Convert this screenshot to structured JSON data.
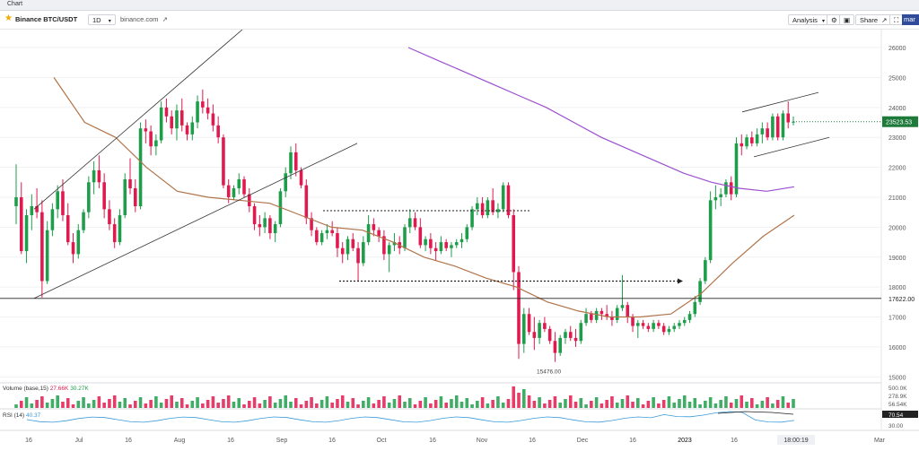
{
  "window": {
    "title": "Chart"
  },
  "toolbar": {
    "symbol": "Binance BTC/USDT",
    "interval": "1D",
    "site": "binance.com",
    "analysis": "Analysis",
    "share": "Share",
    "right_tab": "mar"
  },
  "icons": [
    "star-icon",
    "dropdown-icon",
    "external-link-icon",
    "settings-icon",
    "fullscreen-icon",
    "expand-icon"
  ],
  "colors": {
    "up": "#1e9e4a",
    "down": "#e01a4f",
    "ma_long": "#9c4fcf",
    "ma_short": "#b0744a",
    "rsi": "#3a9ad9",
    "price_tag": "#1e7a3a"
  },
  "chart_data": [
    {
      "type": "candlestick",
      "title": "",
      "ylim": [
        14800,
        26600
      ],
      "y_ticks": [
        "26000",
        "25000",
        "24000",
        "23000",
        "22000",
        "21000",
        "20000",
        "19000",
        "18000",
        "17000",
        "16000",
        "15000"
      ],
      "x_ticks": [
        "16",
        "Jul",
        "16",
        "Aug",
        "16",
        "Sep",
        "16",
        "Oct",
        "16",
        "Nov",
        "16",
        "Dec",
        "16",
        "2023",
        "16",
        "Mar"
      ],
      "horizontal_level": "17622.00",
      "current_price": "23523.53",
      "low_label": "15476.00",
      "candles_ohlc": [
        [
          20700,
          22100,
          20100,
          21000
        ],
        [
          21000,
          21500,
          19100,
          19200
        ],
        [
          19200,
          20600,
          18800,
          20400
        ],
        [
          20400,
          21100,
          19900,
          20700
        ],
        [
          20700,
          21300,
          20300,
          20500
        ],
        [
          20500,
          20900,
          17650,
          18200
        ],
        [
          18200,
          20200,
          18100,
          19900
        ],
        [
          19900,
          20800,
          19700,
          20600
        ],
        [
          20600,
          21400,
          20300,
          21200
        ],
        [
          21200,
          21600,
          20200,
          20400
        ],
        [
          20400,
          20800,
          19400,
          19500
        ],
        [
          19500,
          19800,
          18800,
          19100
        ],
        [
          19100,
          20100,
          18950,
          19900
        ],
        [
          19900,
          20600,
          19800,
          20500
        ],
        [
          20500,
          21700,
          20300,
          21500
        ],
        [
          21500,
          22200,
          21100,
          21900
        ],
        [
          21900,
          22400,
          21300,
          21500
        ],
        [
          21500,
          21800,
          20300,
          20600
        ],
        [
          20600,
          20900,
          19900,
          20100
        ],
        [
          20100,
          20300,
          19300,
          19500
        ],
        [
          19500,
          20600,
          19400,
          20400
        ],
        [
          20400,
          21800,
          20300,
          21600
        ],
        [
          21600,
          22300,
          21100,
          21300
        ],
        [
          21300,
          21600,
          20500,
          20700
        ],
        [
          20700,
          23500,
          20600,
          23300
        ],
        [
          23300,
          23600,
          22800,
          23200
        ],
        [
          23200,
          23400,
          22400,
          22700
        ],
        [
          22700,
          23100,
          22400,
          22900
        ],
        [
          22900,
          24200,
          22800,
          24000
        ],
        [
          24000,
          24300,
          23500,
          23700
        ],
        [
          23700,
          23900,
          23100,
          23300
        ],
        [
          23300,
          24100,
          22900,
          23900
        ],
        [
          23900,
          24300,
          23200,
          23400
        ],
        [
          23400,
          23500,
          22900,
          23100
        ],
        [
          23100,
          23700,
          22900,
          23500
        ],
        [
          23500,
          24400,
          23300,
          24200
        ],
        [
          24200,
          24600,
          23800,
          24000
        ],
        [
          24000,
          24300,
          23600,
          23800
        ],
        [
          23800,
          24100,
          23200,
          23400
        ],
        [
          23400,
          23700,
          22800,
          23000
        ],
        [
          23000,
          23100,
          21300,
          21400
        ],
        [
          21400,
          21600,
          20800,
          21000
        ],
        [
          21000,
          21400,
          20900,
          21300
        ],
        [
          21300,
          21800,
          21100,
          21600
        ],
        [
          21600,
          21700,
          21000,
          21100
        ],
        [
          21100,
          21300,
          20500,
          20700
        ],
        [
          20700,
          20800,
          19900,
          20100
        ],
        [
          20100,
          20400,
          19700,
          20000
        ],
        [
          20000,
          20500,
          19800,
          20300
        ],
        [
          20300,
          20400,
          19600,
          19800
        ],
        [
          19800,
          20200,
          19500,
          20100
        ],
        [
          20100,
          21300,
          20000,
          21200
        ],
        [
          21200,
          22000,
          21000,
          21800
        ],
        [
          21800,
          22700,
          21600,
          22500
        ],
        [
          22500,
          22800,
          21700,
          21900
        ],
        [
          21900,
          22000,
          21300,
          21400
        ],
        [
          21400,
          21600,
          20100,
          20300
        ],
        [
          20300,
          20500,
          19700,
          19900
        ],
        [
          19900,
          20000,
          19400,
          19500
        ],
        [
          19500,
          19900,
          19400,
          19800
        ],
        [
          19800,
          20100,
          19600,
          19900
        ],
        [
          19900,
          20200,
          19700,
          19800
        ],
        [
          19800,
          20000,
          19000,
          19300
        ],
        [
          19300,
          19500,
          18800,
          19100
        ],
        [
          19100,
          19700,
          18900,
          19600
        ],
        [
          19600,
          19800,
          19200,
          19300
        ],
        [
          19300,
          19500,
          18200,
          18800
        ],
        [
          18800,
          19700,
          18700,
          19500
        ],
        [
          19500,
          20400,
          19400,
          20100
        ],
        [
          20100,
          20300,
          19700,
          19900
        ],
        [
          19900,
          20000,
          19500,
          19700
        ],
        [
          19700,
          19900,
          18900,
          19100
        ],
        [
          19100,
          19500,
          18500,
          19400
        ],
        [
          19400,
          19800,
          19200,
          19500
        ],
        [
          19500,
          19700,
          19100,
          19300
        ],
        [
          19300,
          20100,
          19200,
          20000
        ],
        [
          20000,
          20600,
          19800,
          20300
        ],
        [
          20300,
          20500,
          19900,
          20000
        ],
        [
          20000,
          20300,
          19300,
          19400
        ],
        [
          19400,
          19700,
          19200,
          19600
        ],
        [
          19600,
          19800,
          19100,
          19300
        ],
        [
          19300,
          19500,
          18900,
          19200
        ],
        [
          19200,
          19700,
          19100,
          19500
        ],
        [
          19500,
          19600,
          19200,
          19300
        ],
        [
          19300,
          19500,
          19000,
          19400
        ],
        [
          19400,
          19600,
          19300,
          19500
        ],
        [
          19500,
          19800,
          19300,
          19600
        ],
        [
          19600,
          20100,
          19500,
          20000
        ],
        [
          20000,
          20700,
          19900,
          20600
        ],
        [
          20600,
          21000,
          20400,
          20800
        ],
        [
          20800,
          21000,
          20300,
          20400
        ],
        [
          20400,
          21000,
          20300,
          20900
        ],
        [
          20900,
          21300,
          20400,
          20500
        ],
        [
          20500,
          20800,
          20300,
          20600
        ],
        [
          20600,
          21500,
          20500,
          21400
        ],
        [
          21400,
          21500,
          20300,
          20400
        ],
        [
          20400,
          20600,
          17900,
          18500
        ],
        [
          18500,
          18700,
          15600,
          16100
        ],
        [
          16100,
          17300,
          15800,
          17100
        ],
        [
          17100,
          17300,
          16400,
          16500
        ],
        [
          16500,
          17000,
          15900,
          16300
        ],
        [
          16300,
          16900,
          16100,
          16800
        ],
        [
          16800,
          17000,
          16500,
          16600
        ],
        [
          16600,
          16700,
          16100,
          16200
        ],
        [
          16200,
          16500,
          15500,
          15800
        ],
        [
          15800,
          16400,
          15700,
          16300
        ],
        [
          16300,
          16600,
          16100,
          16500
        ],
        [
          16500,
          16700,
          16200,
          16300
        ],
        [
          16300,
          16600,
          16000,
          16200
        ],
        [
          16200,
          16900,
          16100,
          16800
        ],
        [
          16800,
          17300,
          16700,
          17100
        ],
        [
          17100,
          17200,
          16800,
          16900
        ],
        [
          16900,
          17300,
          16800,
          17200
        ],
        [
          17200,
          17300,
          16900,
          17100
        ],
        [
          17100,
          17400,
          16900,
          17000
        ],
        [
          17000,
          17200,
          16700,
          16900
        ],
        [
          16900,
          17400,
          16800,
          17300
        ],
        [
          17300,
          18400,
          17200,
          17400
        ],
        [
          17400,
          17500,
          16800,
          17000
        ],
        [
          17000,
          17100,
          16500,
          16700
        ],
        [
          16700,
          16900,
          16300,
          16800
        ],
        [
          16800,
          16900,
          16600,
          16700
        ],
        [
          16700,
          16800,
          16500,
          16600
        ],
        [
          16600,
          16900,
          16500,
          16800
        ],
        [
          16800,
          16900,
          16600,
          16700
        ],
        [
          16700,
          16800,
          16400,
          16500
        ],
        [
          16500,
          16700,
          16400,
          16600
        ],
        [
          16600,
          16800,
          16500,
          16700
        ],
        [
          16700,
          16900,
          16600,
          16800
        ],
        [
          16800,
          17000,
          16700,
          16900
        ],
        [
          16900,
          17200,
          16800,
          17100
        ],
        [
          17100,
          17700,
          17000,
          17500
        ],
        [
          17500,
          18300,
          17400,
          18200
        ],
        [
          18200,
          19000,
          18100,
          18900
        ],
        [
          18900,
          21200,
          18800,
          20900
        ],
        [
          20900,
          21400,
          20600,
          21000
        ],
        [
          21000,
          21300,
          20700,
          21100
        ],
        [
          21100,
          21600,
          21000,
          21500
        ],
        [
          21500,
          21700,
          20900,
          21100
        ],
        [
          21100,
          23000,
          21000,
          22800
        ],
        [
          22800,
          23100,
          22400,
          22700
        ],
        [
          22700,
          23100,
          22600,
          23000
        ],
        [
          23000,
          23200,
          22700,
          22800
        ],
        [
          22800,
          23300,
          22700,
          23100
        ],
        [
          23100,
          23500,
          22800,
          23300
        ],
        [
          23300,
          23500,
          22900,
          23000
        ],
        [
          23000,
          23800,
          22900,
          23700
        ],
        [
          23700,
          23800,
          22900,
          23000
        ],
        [
          23000,
          23900,
          22900,
          23800
        ],
        [
          23800,
          24200,
          23300,
          23500
        ],
        [
          23500,
          23700,
          23400,
          23523.53
        ]
      ],
      "ma_long": [
        26000,
        25600,
        25200,
        24800,
        24400,
        24000,
        23500,
        23000,
        22600,
        22200,
        21800,
        21500,
        21300,
        21200,
        21350
      ],
      "ma_short": [
        25000,
        23500,
        23000,
        22000,
        21200,
        21000,
        20900,
        20800,
        20400,
        20000,
        19900,
        19500,
        19000,
        18700,
        18300,
        18000,
        17500,
        17200,
        17000,
        17000,
        17100,
        17800,
        18800,
        19700,
        20400
      ],
      "volume": {
        "label": "Volume (base,15)",
        "value_1": "27.66K",
        "value_2": "30.27K",
        "unit": "K",
        "ticks": [
          "500.0K",
          "278.9K",
          "56.54K"
        ],
        "up_ticks": [
          "30.27K"
        ]
      },
      "rsi": {
        "label": "RSI (14)",
        "value": "40.37",
        "ticks": [
          "70.54",
          "30.00"
        ]
      }
    }
  ]
}
